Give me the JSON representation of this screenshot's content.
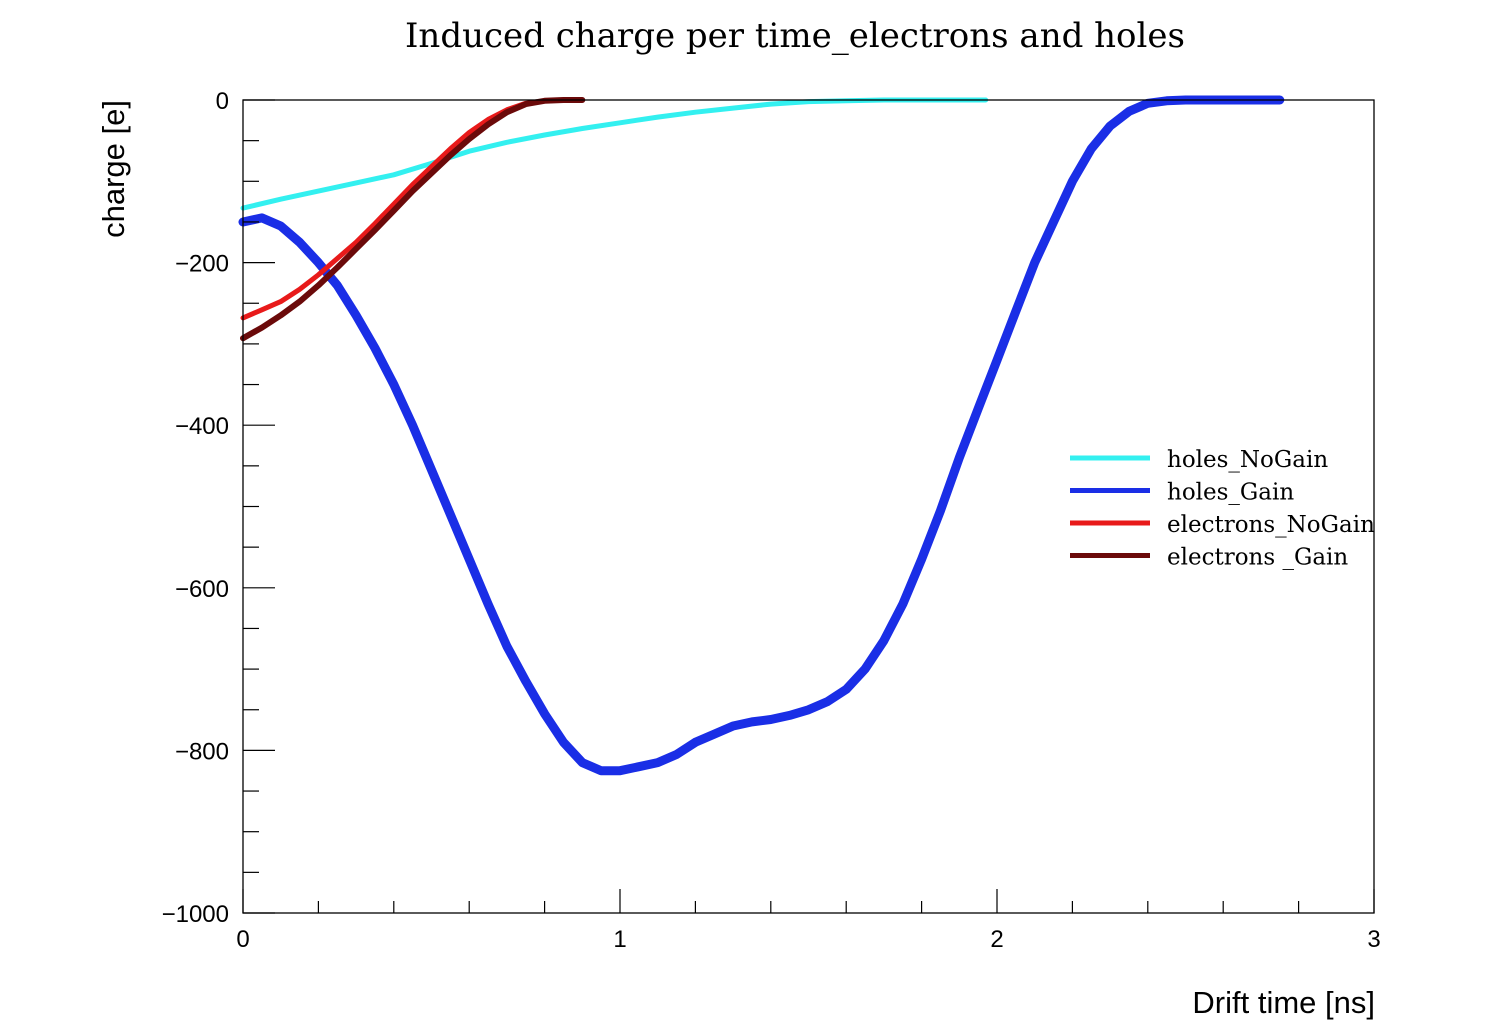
{
  "chart_data": {
    "type": "line",
    "title": "Induced charge per time_electrons and holes",
    "xlabel": "Drift time [ns]",
    "ylabel": "charge [e]",
    "xlim": [
      0,
      3
    ],
    "ylim": [
      -1000,
      0
    ],
    "x_ticks": [
      0,
      1,
      2,
      3
    ],
    "x_tick_labels": [
      "0",
      "1",
      "2",
      "3"
    ],
    "y_ticks": [
      0,
      -200,
      -400,
      -600,
      -800,
      -1000
    ],
    "y_tick_labels": [
      "0",
      "−200",
      "−400",
      "−600",
      "−800",
      "−1000"
    ],
    "grid": false,
    "legend_position": "right",
    "series": [
      {
        "name": "holes_NoGain",
        "color": "#33f0f0",
        "x": [
          0,
          0.1,
          0.2,
          0.3,
          0.4,
          0.5,
          0.6,
          0.7,
          0.8,
          0.9,
          1.0,
          1.1,
          1.2,
          1.3,
          1.4,
          1.5,
          1.6,
          1.7,
          1.8,
          1.9,
          1.97
        ],
        "y": [
          -133,
          -122,
          -112,
          -102,
          -92,
          -78,
          -63,
          -52,
          -43,
          -35,
          -28,
          -21,
          -15,
          -10,
          -5,
          -2,
          -1,
          0,
          0,
          0,
          0
        ]
      },
      {
        "name": "holes_Gain",
        "color": "#1a2ee6",
        "x": [
          0,
          0.05,
          0.1,
          0.15,
          0.2,
          0.25,
          0.3,
          0.35,
          0.4,
          0.45,
          0.5,
          0.55,
          0.6,
          0.65,
          0.7,
          0.75,
          0.8,
          0.85,
          0.9,
          0.95,
          1.0,
          1.05,
          1.1,
          1.15,
          1.2,
          1.25,
          1.3,
          1.35,
          1.4,
          1.45,
          1.5,
          1.55,
          1.6,
          1.65,
          1.7,
          1.75,
          1.8,
          1.85,
          1.9,
          1.95,
          2.0,
          2.05,
          2.1,
          2.15,
          2.2,
          2.25,
          2.3,
          2.35,
          2.4,
          2.45,
          2.5,
          2.6,
          2.7,
          2.75
        ],
        "y": [
          -150,
          -145,
          -155,
          -175,
          -200,
          -228,
          -265,
          -305,
          -350,
          -400,
          -455,
          -510,
          -565,
          -620,
          -672,
          -715,
          -755,
          -790,
          -815,
          -825,
          -825,
          -820,
          -815,
          -805,
          -790,
          -780,
          -770,
          -765,
          -762,
          -757,
          -750,
          -740,
          -725,
          -700,
          -665,
          -620,
          -565,
          -505,
          -440,
          -380,
          -320,
          -260,
          -200,
          -150,
          -100,
          -60,
          -32,
          -14,
          -4,
          -1,
          0,
          0,
          0,
          0
        ]
      },
      {
        "name": "electrons_NoGain",
        "color": "#e81a1a",
        "x": [
          0,
          0.05,
          0.1,
          0.15,
          0.2,
          0.25,
          0.3,
          0.35,
          0.4,
          0.45,
          0.5,
          0.55,
          0.6,
          0.65,
          0.7,
          0.75,
          0.8,
          0.85,
          0.9
        ],
        "y": [
          -268,
          -258,
          -248,
          -233,
          -215,
          -195,
          -175,
          -152,
          -128,
          -104,
          -82,
          -60,
          -40,
          -24,
          -12,
          -4,
          -1,
          0,
          0
        ]
      },
      {
        "name": "electrons _Gain",
        "color": "#6b0a0a",
        "x": [
          0,
          0.05,
          0.1,
          0.15,
          0.2,
          0.25,
          0.3,
          0.35,
          0.4,
          0.45,
          0.5,
          0.55,
          0.6,
          0.65,
          0.7,
          0.75,
          0.8,
          0.85,
          0.9
        ],
        "y": [
          -293,
          -280,
          -265,
          -248,
          -228,
          -206,
          -183,
          -160,
          -136,
          -112,
          -90,
          -68,
          -48,
          -30,
          -15,
          -5,
          -1,
          0,
          0
        ]
      }
    ]
  }
}
